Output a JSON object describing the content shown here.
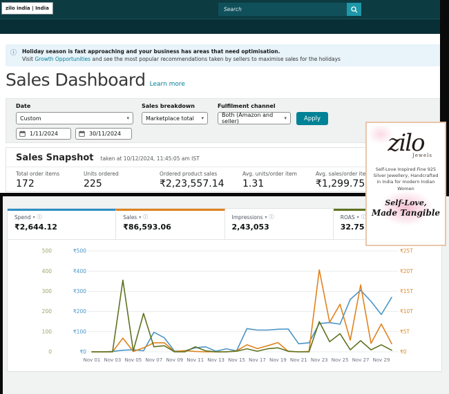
{
  "topbar": {
    "account_label": "zilo india | India",
    "search_placeholder": "Search"
  },
  "banner": {
    "title": "Holiday season is fast approaching and your business has areas that need optimisation.",
    "body_prefix": "Visit ",
    "link_text": "Growth Opportunities",
    "body_suffix": " and see the most popular recommendations taken by sellers to maximise sales for the holidays"
  },
  "page": {
    "title": "Sales Dashboard",
    "learn_more": "Learn more"
  },
  "filters": {
    "date": {
      "label": "Date",
      "value": "Custom",
      "from": "1/11/2024",
      "to": "30/11/2024"
    },
    "sales_breakdown": {
      "label": "Sales breakdown",
      "value": "Marketplace total"
    },
    "fulfilment_channel": {
      "label": "Fulfilment channel",
      "value": "Both (Amazon and seller)"
    },
    "apply_label": "Apply"
  },
  "snapshot": {
    "title": "Sales Snapshot",
    "taken_at": "taken at 10/12/2024, 11:45:05 am IST",
    "metrics": [
      {
        "label": "Total order items",
        "value": "172"
      },
      {
        "label": "Units ordered",
        "value": "225"
      },
      {
        "label": "Ordered product sales",
        "value": "₹2,23,557.14"
      },
      {
        "label": "Avg. units/order item",
        "value": "1.31"
      },
      {
        "label": "Avg. sales/order item",
        "value": "₹1,299.75"
      }
    ]
  },
  "ads_widget": {
    "cards": [
      {
        "label": "Spend",
        "value": "₹2,644.12",
        "accent": "#2e8ec6",
        "selected": true
      },
      {
        "label": "Sales",
        "value": "₹86,593.06",
        "accent": "#e0821c",
        "selected": true
      },
      {
        "label": "Impressions",
        "value": "2,43,053",
        "accent": "",
        "selected": false
      },
      {
        "label": "ROAS",
        "value": "32.75",
        "accent": "#5d721f",
        "selected": true
      }
    ]
  },
  "chart_data": {
    "type": "line",
    "title": "",
    "x": [
      "Nov 01",
      "Nov 02",
      "Nov 03",
      "Nov 04",
      "Nov 05",
      "Nov 06",
      "Nov 07",
      "Nov 08",
      "Nov 09",
      "Nov 10",
      "Nov 11",
      "Nov 12",
      "Nov 13",
      "Nov 14",
      "Nov 15",
      "Nov 16",
      "Nov 17",
      "Nov 18",
      "Nov 19",
      "Nov 20",
      "Nov 21",
      "Nov 22",
      "Nov 23",
      "Nov 24",
      "Nov 25",
      "Nov 26",
      "Nov 27",
      "Nov 28",
      "Nov 29",
      "Nov 30"
    ],
    "x_tick_labels": [
      "Nov 01",
      "Nov 03",
      "Nov 05",
      "Nov 07",
      "Nov 09",
      "Nov 11",
      "Nov 13",
      "Nov 15",
      "Nov 17",
      "Nov 19",
      "Nov 21",
      "Nov 23",
      "Nov 25",
      "Nov 27",
      "Nov 29"
    ],
    "series": [
      {
        "name": "Spend",
        "axis": "spend",
        "color": "#4a94c6",
        "values": [
          0,
          0,
          2,
          8,
          10,
          5,
          97,
          70,
          3,
          5,
          20,
          25,
          3,
          15,
          5,
          115,
          108,
          108,
          112,
          113,
          40,
          45,
          140,
          145,
          137,
          260,
          305,
          250,
          185,
          270
        ]
      },
      {
        "name": "Sales",
        "axis": "sales",
        "color": "#e0821c",
        "values": [
          0,
          0,
          0,
          3400,
          100,
          1000,
          2250,
          2250,
          50,
          300,
          100,
          0,
          0,
          0,
          250,
          1750,
          800,
          1500,
          2300,
          100,
          0,
          100,
          20300,
          7300,
          11800,
          2900,
          16600,
          2100,
          6900,
          2000
        ]
      },
      {
        "name": "ROAS",
        "axis": "roas",
        "color": "#5d721f",
        "values": [
          0,
          0,
          0,
          355,
          5,
          190,
          25,
          30,
          0,
          0,
          25,
          5,
          0,
          0,
          3,
          15,
          3,
          15,
          20,
          3,
          0,
          0,
          150,
          50,
          90,
          10,
          55,
          10,
          35,
          8
        ]
      }
    ],
    "axes": {
      "roas": {
        "ticks": [
          "0",
          "100",
          "200",
          "300",
          "400",
          "500"
        ],
        "min": 0,
        "max": 500,
        "color": "#9aa668"
      },
      "spend": {
        "ticks": [
          "₹0",
          "₹100",
          "₹200",
          "₹300",
          "₹400",
          "₹500"
        ],
        "min": 0,
        "max": 500,
        "color": "#4a94c6"
      },
      "sales": {
        "ticks": [
          "₹0",
          "₹5T",
          "₹10T",
          "₹15T",
          "₹20T",
          "₹25T"
        ],
        "min": 0,
        "max": 25000,
        "color": "#d98a2b"
      }
    },
    "grid": true,
    "legend_position": "none"
  },
  "brand_card": {
    "logo_text": "zilo",
    "logo_sub": "Jewels",
    "tagline": "Self-Love Inspired Fine 925 Silver Jewellery, Handcrafted in India for modern Indian Women",
    "script_line1": "Self-Love,",
    "script_line2": "Made Tangible"
  }
}
